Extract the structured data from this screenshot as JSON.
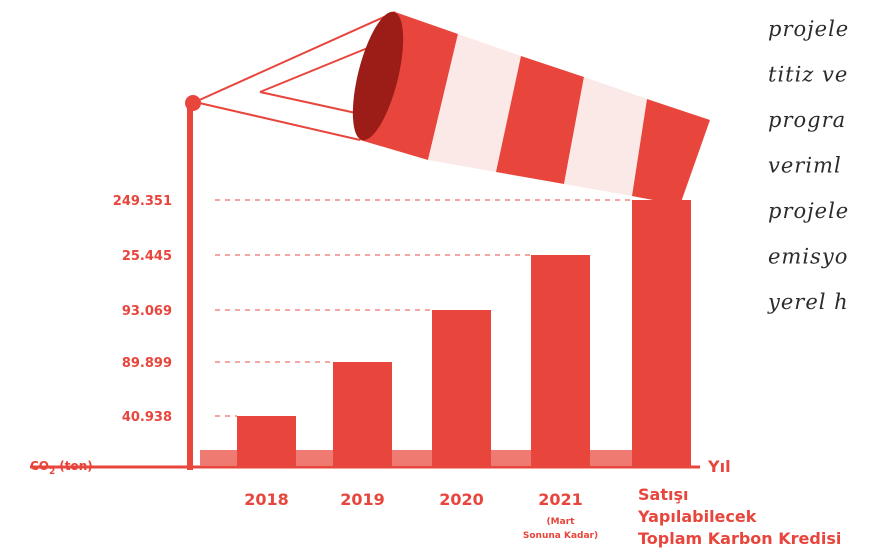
{
  "axis": {
    "y_label": "CO",
    "y_label_sub": "2",
    "y_label_unit": "(ton)",
    "x_label": "Yıl"
  },
  "bars": [
    {
      "category": "2018",
      "label": "40.938"
    },
    {
      "category": "2019",
      "label": "89.899"
    },
    {
      "category": "2020",
      "label": "93.069"
    },
    {
      "category": "2021",
      "note": [
        "(Mart",
        "Sonuna Kadar)"
      ],
      "label": "25.445"
    },
    {
      "category_lines": [
        "Satışı",
        "Yapılabilecek",
        "Toplam Karbon Kredisi"
      ],
      "label": "249.351"
    }
  ],
  "side_text": [
    "projele",
    "titiz ve",
    "progra",
    "veriml",
    "projele",
    "emisyo",
    "yerel h"
  ]
}
